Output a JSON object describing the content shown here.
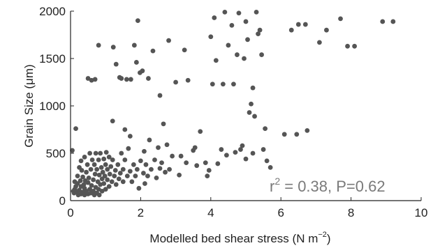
{
  "chart_data": {
    "type": "scatter",
    "title": "",
    "xlabel": "Modelled bed shear stress (N m",
    "xlabel_unit_exponent": "−2",
    "xlabel_close": ")",
    "ylabel": "Grain Size (μm)",
    "xlim": [
      0,
      10
    ],
    "ylim": [
      0,
      2000
    ],
    "xticks": [
      0,
      2,
      4,
      6,
      8,
      10
    ],
    "yticks": [
      0,
      500,
      1000,
      1500,
      2000
    ],
    "grid": false,
    "legend": "none",
    "marker_color": "#555555",
    "annotation": {
      "r_symbol": "r",
      "r_exponent": "2",
      "text": " = 0.38, P=0.62",
      "color": "#7a7a7a"
    },
    "points": [
      [
        0.05,
        530
      ],
      [
        0.08,
        100
      ],
      [
        0.1,
        80
      ],
      [
        0.12,
        120
      ],
      [
        0.12,
        200
      ],
      [
        0.15,
        150
      ],
      [
        0.15,
        760
      ],
      [
        0.18,
        90
      ],
      [
        0.2,
        180
      ],
      [
        0.2,
        260
      ],
      [
        0.22,
        60
      ],
      [
        0.25,
        110
      ],
      [
        0.25,
        350
      ],
      [
        0.28,
        210
      ],
      [
        0.3,
        70
      ],
      [
        0.3,
        150
      ],
      [
        0.3,
        420
      ],
      [
        0.32,
        320
      ],
      [
        0.35,
        90
      ],
      [
        0.35,
        250
      ],
      [
        0.38,
        170
      ],
      [
        0.4,
        60
      ],
      [
        0.4,
        130
      ],
      [
        0.4,
        460
      ],
      [
        0.42,
        210
      ],
      [
        0.45,
        100
      ],
      [
        0.45,
        300
      ],
      [
        0.48,
        380
      ],
      [
        0.5,
        70
      ],
      [
        0.5,
        190
      ],
      [
        0.5,
        1290
      ],
      [
        0.52,
        240
      ],
      [
        0.55,
        120
      ],
      [
        0.55,
        500
      ],
      [
        0.58,
        80
      ],
      [
        0.58,
        330
      ],
      [
        0.6,
        160
      ],
      [
        0.6,
        1270
      ],
      [
        0.62,
        430
      ],
      [
        0.65,
        100
      ],
      [
        0.65,
        220
      ],
      [
        0.68,
        60
      ],
      [
        0.68,
        380
      ],
      [
        0.7,
        280
      ],
      [
        0.7,
        1280
      ],
      [
        0.72,
        140
      ],
      [
        0.72,
        500
      ],
      [
        0.75,
        80
      ],
      [
        0.75,
        330
      ],
      [
        0.78,
        200
      ],
      [
        0.8,
        120
      ],
      [
        0.8,
        430
      ],
      [
        0.8,
        1640
      ],
      [
        0.82,
        60
      ],
      [
        0.82,
        270
      ],
      [
        0.85,
        170
      ],
      [
        0.85,
        500
      ],
      [
        0.88,
        350
      ],
      [
        0.9,
        100
      ],
      [
        0.9,
        230
      ],
      [
        0.92,
        300
      ],
      [
        0.95,
        180
      ],
      [
        0.95,
        440
      ],
      [
        0.98,
        260
      ],
      [
        1.0,
        120
      ],
      [
        1.0,
        380
      ],
      [
        1.02,
        510
      ],
      [
        1.05,
        220
      ],
      [
        1.05,
        330
      ],
      [
        1.1,
        150
      ],
      [
        1.1,
        460
      ],
      [
        1.12,
        280
      ],
      [
        1.15,
        360
      ],
      [
        1.18,
        200
      ],
      [
        1.2,
        430
      ],
      [
        1.2,
        840
      ],
      [
        1.22,
        1620
      ],
      [
        1.25,
        260
      ],
      [
        1.28,
        320
      ],
      [
        1.3,
        170
      ],
      [
        1.3,
        1440
      ],
      [
        1.35,
        380
      ],
      [
        1.38,
        230
      ],
      [
        1.4,
        1300
      ],
      [
        1.42,
        290
      ],
      [
        1.45,
        500
      ],
      [
        1.45,
        1290
      ],
      [
        1.5,
        200
      ],
      [
        1.5,
        330
      ],
      [
        1.55,
        430
      ],
      [
        1.55,
        750
      ],
      [
        1.6,
        1280
      ],
      [
        1.62,
        260
      ],
      [
        1.65,
        550
      ],
      [
        1.7,
        310
      ],
      [
        1.7,
        680
      ],
      [
        1.72,
        1280
      ],
      [
        1.75,
        200
      ],
      [
        1.8,
        380
      ],
      [
        1.82,
        1640
      ],
      [
        1.85,
        260
      ],
      [
        1.88,
        1460
      ],
      [
        1.9,
        330
      ],
      [
        1.92,
        1900
      ],
      [
        1.95,
        130
      ],
      [
        1.98,
        1350
      ],
      [
        2.0,
        420
      ],
      [
        2.05,
        1370
      ],
      [
        2.08,
        290
      ],
      [
        2.1,
        520
      ],
      [
        2.12,
        180
      ],
      [
        2.15,
        380
      ],
      [
        2.2,
        260
      ],
      [
        2.22,
        1290
      ],
      [
        2.25,
        640
      ],
      [
        2.3,
        330
      ],
      [
        2.35,
        1580
      ],
      [
        2.4,
        430
      ],
      [
        2.45,
        240
      ],
      [
        2.5,
        560
      ],
      [
        2.55,
        1110
      ],
      [
        2.55,
        340
      ],
      [
        2.6,
        400
      ],
      [
        2.65,
        810
      ],
      [
        2.7,
        300
      ],
      [
        2.75,
        590
      ],
      [
        2.8,
        1690
      ],
      [
        2.82,
        330
      ],
      [
        2.9,
        470
      ],
      [
        3.0,
        1250
      ],
      [
        3.1,
        270
      ],
      [
        3.25,
        1590
      ],
      [
        3.3,
        400
      ],
      [
        3.35,
        1270
      ],
      [
        3.5,
        530
      ],
      [
        3.6,
        370
      ],
      [
        3.7,
        730
      ],
      [
        3.9,
        260
      ],
      [
        3.95,
        320
      ],
      [
        4.0,
        1730
      ],
      [
        4.05,
        1230
      ],
      [
        4.1,
        1930
      ],
      [
        4.15,
        1480
      ],
      [
        4.3,
        540
      ],
      [
        4.35,
        1230
      ],
      [
        4.4,
        1990
      ],
      [
        4.5,
        1640
      ],
      [
        4.6,
        1850
      ],
      [
        4.65,
        1230
      ],
      [
        4.75,
        1540
      ],
      [
        4.8,
        1980
      ],
      [
        4.85,
        540
      ],
      [
        4.9,
        580
      ],
      [
        4.95,
        1500
      ],
      [
        5.0,
        1890
      ],
      [
        5.05,
        1700
      ],
      [
        5.1,
        930
      ],
      [
        5.15,
        1020
      ],
      [
        5.2,
        1190
      ],
      [
        5.25,
        890
      ],
      [
        5.3,
        1990
      ],
      [
        5.35,
        1760
      ],
      [
        5.4,
        1800
      ],
      [
        5.45,
        1540
      ],
      [
        5.5,
        540
      ],
      [
        5.55,
        760
      ],
      [
        5.6,
        420
      ],
      [
        5.7,
        350
      ],
      [
        6.1,
        700
      ],
      [
        6.3,
        1800
      ],
      [
        6.45,
        700
      ],
      [
        6.5,
        1860
      ],
      [
        6.7,
        1860
      ],
      [
        6.75,
        740
      ],
      [
        7.1,
        1670
      ],
      [
        7.3,
        1800
      ],
      [
        7.7,
        1920
      ],
      [
        7.9,
        1630
      ],
      [
        8.1,
        1630
      ],
      [
        8.9,
        1890
      ],
      [
        9.2,
        1890
      ],
      [
        3.15,
        470
      ],
      [
        3.55,
        560
      ],
      [
        3.85,
        400
      ],
      [
        4.2,
        390
      ],
      [
        4.45,
        480
      ],
      [
        4.7,
        510
      ],
      [
        5.0,
        440
      ],
      [
        5.2,
        500
      ]
    ]
  }
}
